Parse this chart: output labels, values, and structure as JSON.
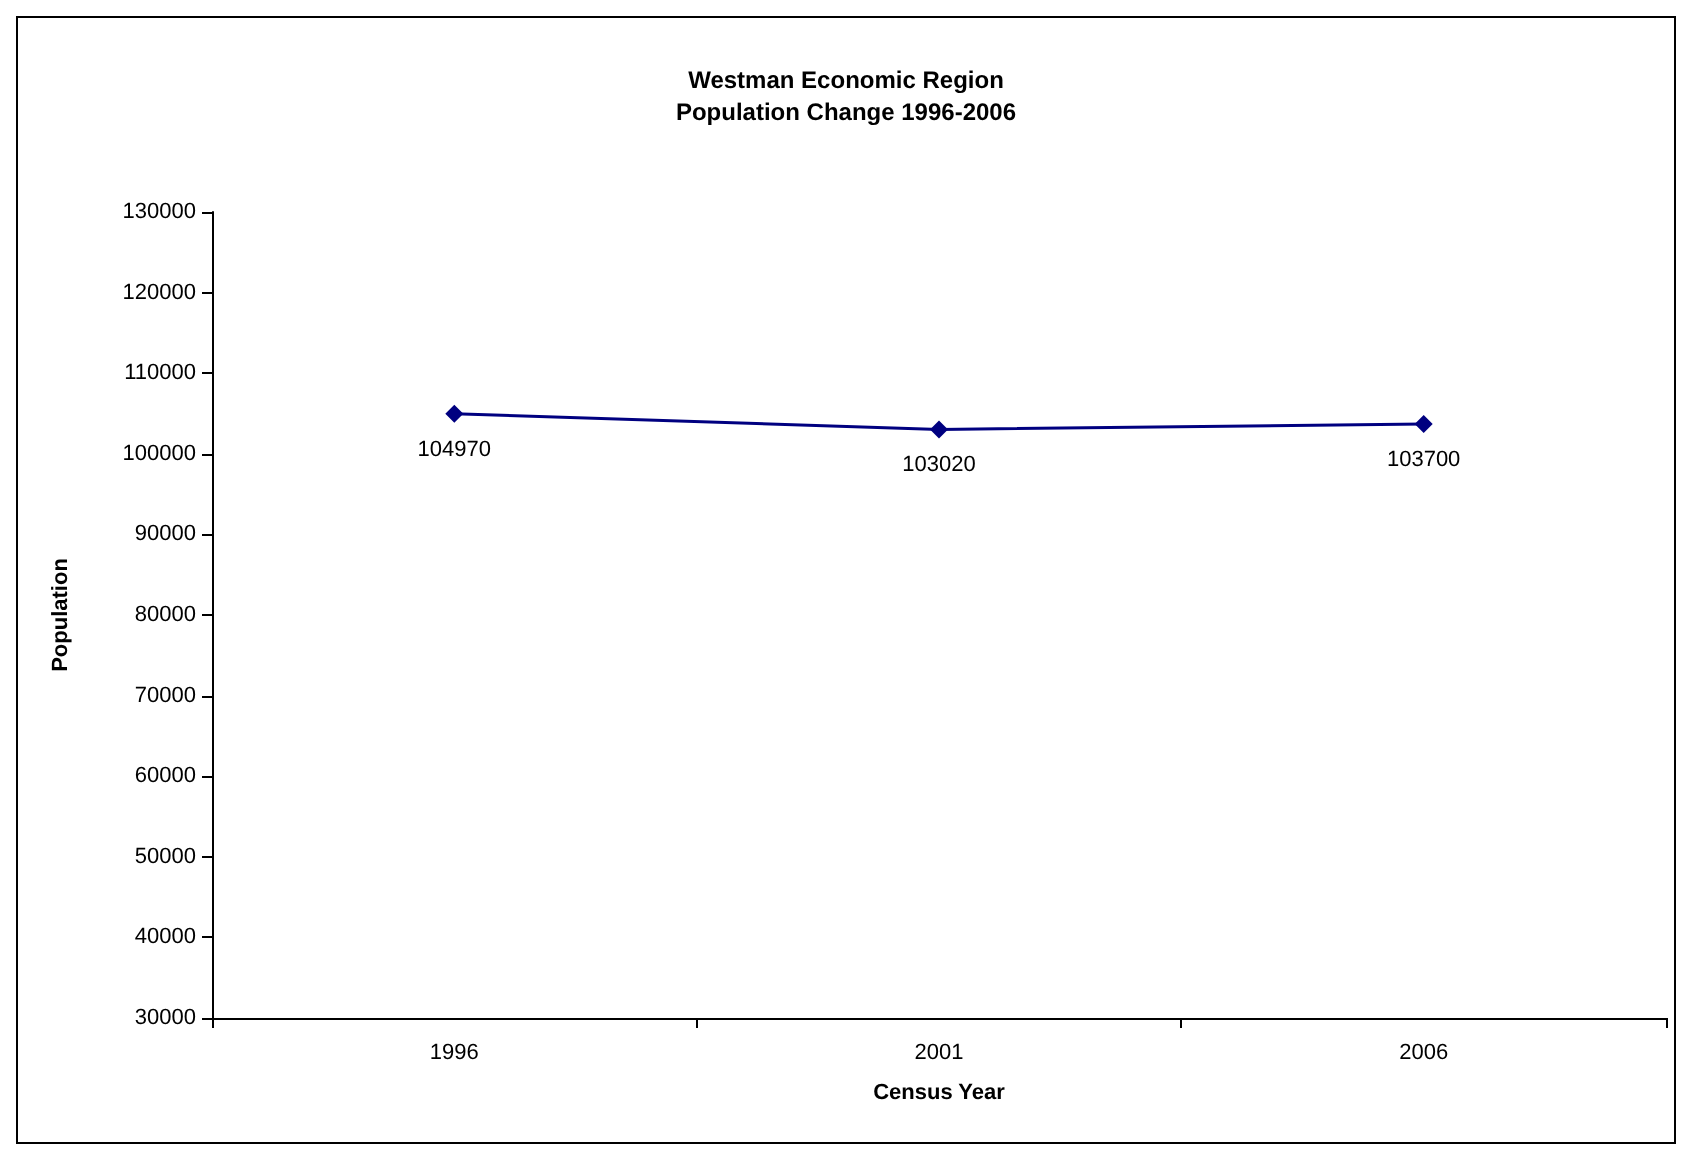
{
  "chart_data": {
    "type": "line",
    "title": "Westman Economic Region\nPopulation Change 1996-2006",
    "xlabel": "Census Year",
    "ylabel": "Population",
    "categories": [
      "1996",
      "2001",
      "2006"
    ],
    "series": [
      {
        "color": "#000080",
        "values": [
          104970,
          103020,
          103700
        ]
      }
    ],
    "ylim": [
      30000,
      130000
    ],
    "yticks": [
      30000,
      40000,
      50000,
      60000,
      70000,
      80000,
      90000,
      100000,
      110000,
      120000,
      130000
    ],
    "grid": false,
    "marker": "diamond",
    "line_style": "solid",
    "data_labels": true
  }
}
